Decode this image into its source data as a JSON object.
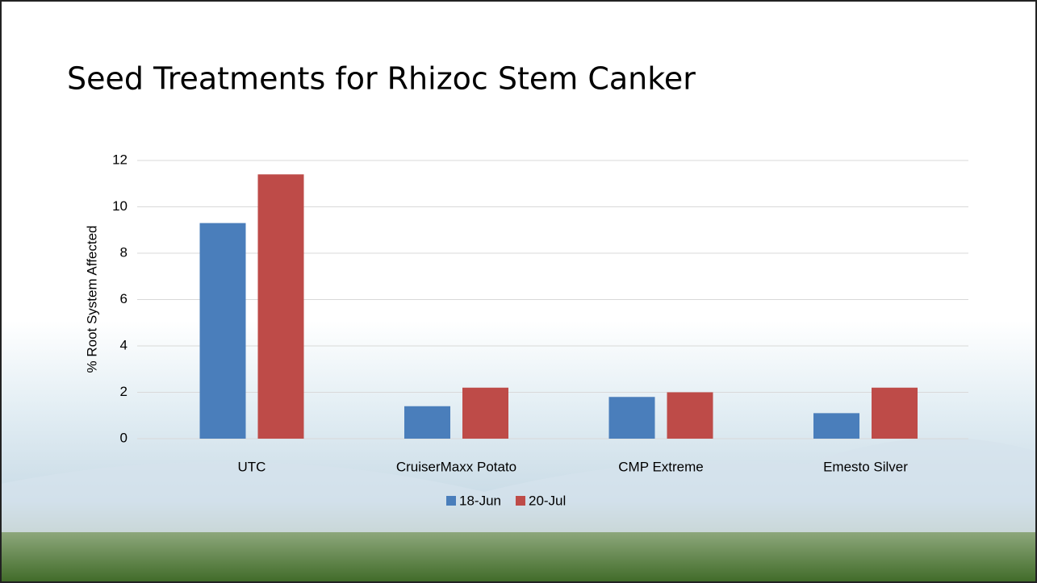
{
  "chart_data": {
    "type": "bar",
    "title": "Seed Treatments for Rhizoc Stem Canker",
    "y_label": "% Root System Affected",
    "categories": [
      "UTC",
      "CruiserMaxx Potato",
      "CMP Extreme",
      "Emesto Silver"
    ],
    "series": [
      {
        "name": "18-Jun",
        "color": "#4a7ebb",
        "values": [
          9.3,
          1.4,
          1.8,
          1.1
        ]
      },
      {
        "name": "20-Jul",
        "color": "#be4b48",
        "values": [
          11.4,
          2.2,
          2.0,
          2.2
        ]
      }
    ],
    "ylim": [
      0,
      12
    ],
    "yticks": [
      0,
      2,
      4,
      6,
      8,
      10,
      12
    ],
    "grid": true,
    "legend": "bottom"
  }
}
